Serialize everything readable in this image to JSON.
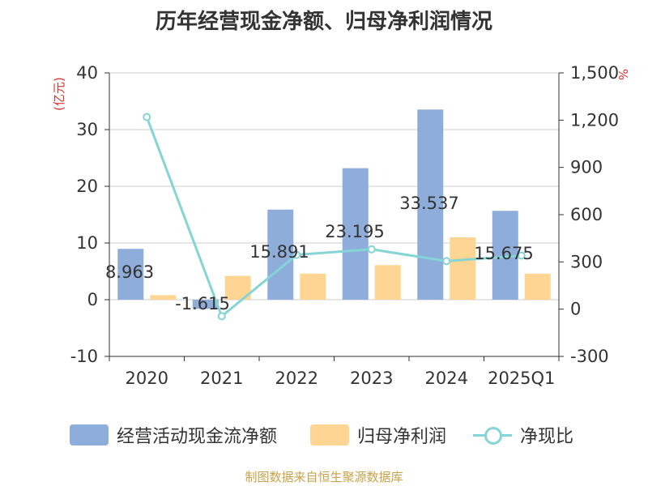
{
  "title": "历年经营现金净额、归母净利润情况",
  "source": "制图数据来自恒生聚源数据库",
  "colors": {
    "bar_cash": "#8EADDA",
    "bar_profit": "#FED592",
    "line_ratio": "#85D4D6",
    "axis_unit": "#E0302C"
  },
  "chart_data": {
    "type": "bar",
    "categories": [
      "2020",
      "2021",
      "2022",
      "2023",
      "2024",
      "2025Q1"
    ],
    "series": [
      {
        "name": "经营活动现金流净额",
        "type": "bar",
        "axis": "left",
        "values": [
          8.963,
          -1.615,
          15.891,
          23.195,
          33.537,
          15.675
        ]
      },
      {
        "name": "归母净利润",
        "type": "bar",
        "axis": "left",
        "values": [
          0.8,
          4.2,
          4.6,
          6.1,
          11.0,
          4.6
        ]
      },
      {
        "name": "净现比",
        "type": "line",
        "axis": "right",
        "values": [
          1220,
          -45,
          345,
          380,
          305,
          340
        ]
      }
    ],
    "data_labels": [
      "8.963",
      "-1.615",
      "15.891",
      "23.195",
      "33.537",
      "15.675"
    ],
    "y_left": {
      "label": "(亿元)",
      "min": -10,
      "max": 40,
      "ticks": [
        "40",
        "30",
        "20",
        "10",
        "0",
        "-10"
      ]
    },
    "y_right": {
      "label": "%",
      "min": -300,
      "max": 1500,
      "ticks": [
        "1,500",
        "1,200",
        "900",
        "600",
        "300",
        "0",
        "-300"
      ]
    },
    "grid": true,
    "legend_position": "bottom"
  }
}
